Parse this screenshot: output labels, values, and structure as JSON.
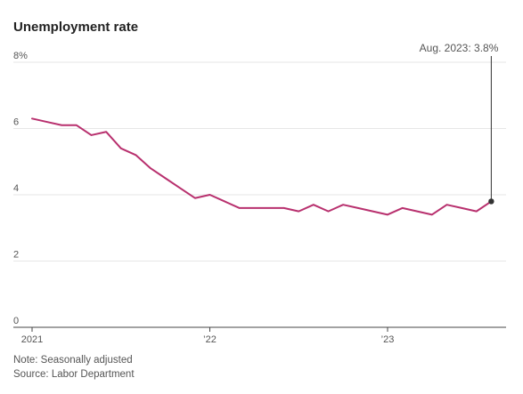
{
  "header": {
    "title": "Unemployment rate"
  },
  "chart_data": {
    "type": "line",
    "title": "Unemployment rate",
    "xlabel": "",
    "ylabel": "",
    "ylim": [
      0,
      8
    ],
    "y_ticks": [
      {
        "value": 0,
        "label": "0"
      },
      {
        "value": 2,
        "label": "2"
      },
      {
        "value": 4,
        "label": "4"
      },
      {
        "value": 6,
        "label": "6"
      },
      {
        "value": 8,
        "label": "8%"
      }
    ],
    "x_ticks": [
      {
        "value": "2021-01",
        "label": "2021"
      },
      {
        "value": "2022-01",
        "label": "’22"
      },
      {
        "value": "2023-01",
        "label": "’23"
      }
    ],
    "x_range": [
      "2021-01",
      "2023-09"
    ],
    "grid": true,
    "series": [
      {
        "color": "#b8306e",
        "points": [
          {
            "x": "2021-01",
            "y": 6.3
          },
          {
            "x": "2021-02",
            "y": 6.2
          },
          {
            "x": "2021-03",
            "y": 6.1
          },
          {
            "x": "2021-04",
            "y": 6.1
          },
          {
            "x": "2021-05",
            "y": 5.8
          },
          {
            "x": "2021-06",
            "y": 5.9
          },
          {
            "x": "2021-07",
            "y": 5.4
          },
          {
            "x": "2021-08",
            "y": 5.2
          },
          {
            "x": "2021-09",
            "y": 4.8
          },
          {
            "x": "2021-10",
            "y": 4.5
          },
          {
            "x": "2021-11",
            "y": 4.2
          },
          {
            "x": "2021-12",
            "y": 3.9
          },
          {
            "x": "2022-01",
            "y": 4.0
          },
          {
            "x": "2022-02",
            "y": 3.8
          },
          {
            "x": "2022-03",
            "y": 3.6
          },
          {
            "x": "2022-04",
            "y": 3.6
          },
          {
            "x": "2022-05",
            "y": 3.6
          },
          {
            "x": "2022-06",
            "y": 3.6
          },
          {
            "x": "2022-07",
            "y": 3.5
          },
          {
            "x": "2022-08",
            "y": 3.7
          },
          {
            "x": "2022-09",
            "y": 3.5
          },
          {
            "x": "2022-10",
            "y": 3.7
          },
          {
            "x": "2022-11",
            "y": 3.6
          },
          {
            "x": "2022-12",
            "y": 3.5
          },
          {
            "x": "2023-01",
            "y": 3.4
          },
          {
            "x": "2023-02",
            "y": 3.6
          },
          {
            "x": "2023-03",
            "y": 3.5
          },
          {
            "x": "2023-04",
            "y": 3.4
          },
          {
            "x": "2023-05",
            "y": 3.7
          },
          {
            "x": "2023-06",
            "y": 3.6
          },
          {
            "x": "2023-07",
            "y": 3.5
          },
          {
            "x": "2023-08",
            "y": 3.8
          }
        ]
      }
    ],
    "annotation": {
      "x": "2023-08",
      "y": 3.8,
      "text": "Aug. 2023: 3.8%"
    }
  },
  "footer": {
    "note": "Note: Seasonally adjusted",
    "source": "Source: Labor Department"
  },
  "colors": {
    "line": "#b8306e",
    "grid": "#e6e6e6",
    "axis": "#444444",
    "marker": "#333333",
    "text": "#555555"
  }
}
